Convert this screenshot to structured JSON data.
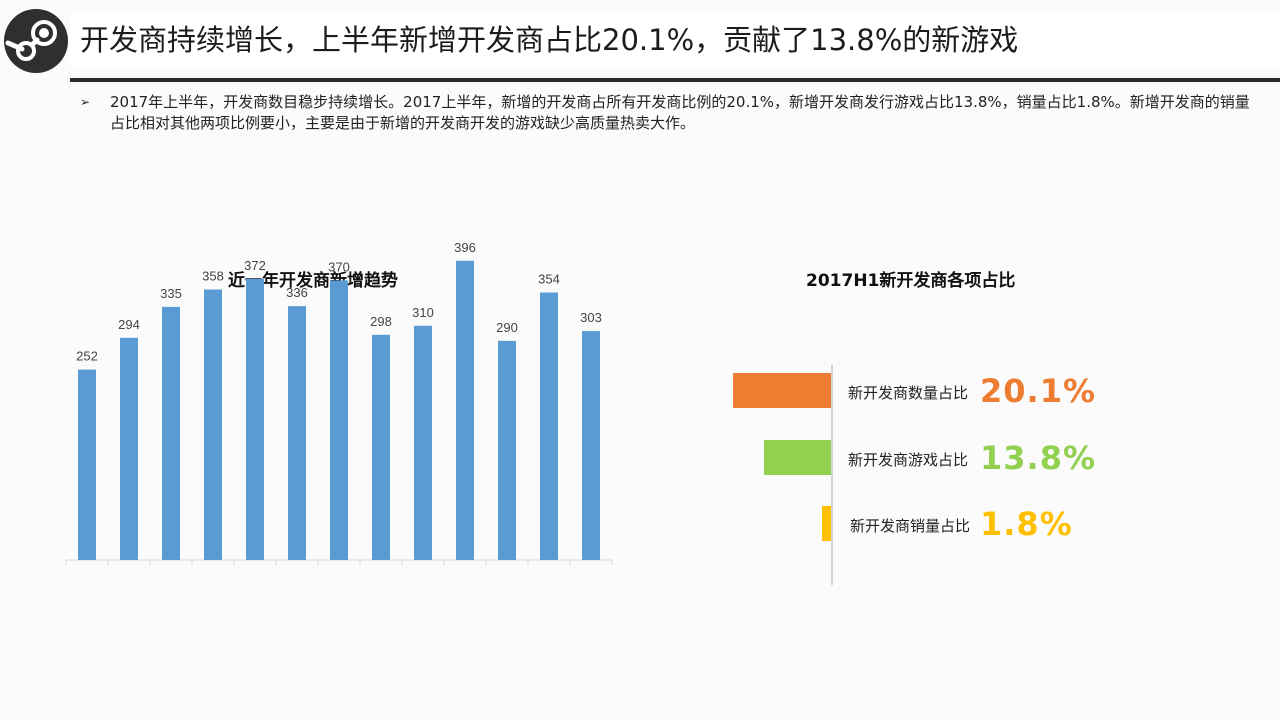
{
  "header": {
    "title": "开发商持续增长，上半年新增开发商占比20.1%，贡献了13.8%的新游戏",
    "logo_icon": "steam-logo-icon"
  },
  "bullet": {
    "text": "2017年上半年，开发商数目稳步持续增长。2017上半年，新增的开发商占所有开发商比例的20.1%，新增开发商发行游戏占比13.8%，销量占比1.8%。新增开发商的销量占比相对其他两项比例要小，主要是由于新增的开发商开发的游戏缺少高质量热卖大作。"
  },
  "chart_data": [
    {
      "type": "bar",
      "title": "近一年开发商新增趋势",
      "categories": [
        "",
        "",
        "",
        "",
        "",
        "",
        "",
        "",
        "",
        "",
        "",
        "",
        ""
      ],
      "values": [
        252,
        294,
        335,
        358,
        372,
        336,
        370,
        298,
        310,
        396,
        290,
        354,
        303
      ],
      "ylim": [
        0,
        400
      ],
      "color": "#5b9bd5",
      "grid": false
    },
    {
      "type": "bar",
      "title": "2017H1新开发商各项占比",
      "orientation": "horizontal",
      "categories": [
        "新开发商数量占比",
        "新开发商游戏占比",
        "新开发商销量占比"
      ],
      "values": [
        20.1,
        13.8,
        1.8
      ],
      "labels": [
        "20.1%",
        "13.8%",
        "1.8%"
      ],
      "colors": [
        "#ed7d31",
        "#92d050",
        "#ffc000"
      ],
      "xlim": [
        0,
        20.1
      ]
    }
  ]
}
